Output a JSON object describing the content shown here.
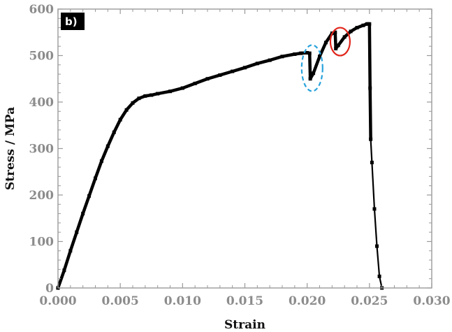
{
  "chart_data": {
    "type": "line",
    "panel_label": "b)",
    "title": "",
    "xlabel": "Strain",
    "ylabel": "Stress / MPa",
    "xlim": [
      0.0,
      0.03
    ],
    "ylim": [
      0,
      600
    ],
    "x_ticks": [
      "0.000",
      "0.005",
      "0.010",
      "0.015",
      "0.020",
      "0.025",
      "0.030"
    ],
    "y_ticks": [
      "0",
      "100",
      "200",
      "300",
      "400",
      "500",
      "600"
    ],
    "grid": false,
    "legend": "none",
    "series": [
      {
        "line_color": "#000000",
        "marker": "square",
        "x": [
          0.0,
          0.0005,
          0.001,
          0.0015,
          0.002,
          0.0025,
          0.003,
          0.0035,
          0.004,
          0.0045,
          0.005,
          0.0055,
          0.006,
          0.0065,
          0.007,
          0.0075,
          0.008,
          0.009,
          0.01,
          0.011,
          0.012,
          0.013,
          0.014,
          0.015,
          0.016,
          0.017,
          0.018,
          0.019,
          0.0195,
          0.02,
          0.0202,
          0.02025,
          0.0205,
          0.021,
          0.0215,
          0.022,
          0.02225,
          0.0223,
          0.0225,
          0.023,
          0.0235,
          0.024,
          0.0245,
          0.0248,
          0.0249,
          0.025,
          0.02505,
          0.0251,
          0.0252,
          0.0254,
          0.0256,
          0.0258,
          0.026
        ],
        "y": [
          0,
          38,
          80,
          120,
          160,
          198,
          236,
          273,
          305,
          335,
          362,
          383,
          398,
          408,
          413,
          415,
          418,
          423,
          430,
          440,
          450,
          458,
          466,
          474,
          483,
          490,
          498,
          503,
          505,
          506,
          505,
          450,
          462,
          498,
          528,
          548,
          550,
          515,
          522,
          540,
          552,
          560,
          565,
          568,
          568,
          568,
          430,
          320,
          270,
          170,
          90,
          25,
          0
        ]
      }
    ],
    "annotations": [
      {
        "shape": "dashed ellipse",
        "color": "#29a3dc",
        "x": 0.0204,
        "y": 473
      },
      {
        "shape": "ellipse",
        "color": "#e1261c",
        "x": 0.02265,
        "y": 530
      }
    ]
  }
}
